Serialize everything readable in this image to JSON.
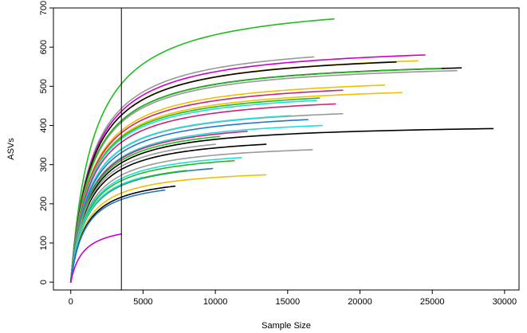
{
  "chart_data": {
    "type": "line",
    "title": "",
    "xlabel": "Sample Size",
    "ylabel": "ASVs",
    "xlim": [
      -1200,
      31000
    ],
    "ylim": [
      -20,
      700
    ],
    "xticks": [
      0,
      5000,
      10000,
      15000,
      20000,
      25000,
      30000
    ],
    "yticks": [
      0,
      100,
      200,
      300,
      400,
      500,
      600,
      700
    ],
    "grid": false,
    "legend": "none",
    "vline": 3500,
    "series": [
      {
        "color": "#22bb22",
        "x_end": 18200,
        "y_end": 672
      },
      {
        "color": "#999999",
        "x_end": 16800,
        "y_end": 575
      },
      {
        "color": "#cc00cc",
        "x_end": 24500,
        "y_end": 580
      },
      {
        "color": "#f0c000",
        "x_end": 24000,
        "y_end": 565
      },
      {
        "color": "#000000",
        "x_end": 22500,
        "y_end": 562
      },
      {
        "color": "#000000",
        "x_end": 27000,
        "y_end": 547
      },
      {
        "color": "#999999",
        "x_end": 26700,
        "y_end": 540
      },
      {
        "color": "#22bb22",
        "x_end": 25600,
        "y_end": 545
      },
      {
        "color": "#f0c000",
        "x_end": 21700,
        "y_end": 503
      },
      {
        "color": "#cc2277",
        "x_end": 18800,
        "y_end": 490
      },
      {
        "color": "#f0c000",
        "x_end": 22900,
        "y_end": 484
      },
      {
        "color": "#22bb22",
        "x_end": 17200,
        "y_end": 470
      },
      {
        "color": "#22dddd",
        "x_end": 17000,
        "y_end": 464
      },
      {
        "color": "#cc2277",
        "x_end": 18300,
        "y_end": 455
      },
      {
        "color": "#999999",
        "x_end": 18800,
        "y_end": 430
      },
      {
        "color": "#22dddd",
        "x_end": 15200,
        "y_end": 425
      },
      {
        "color": "#2277cc",
        "x_end": 16400,
        "y_end": 415
      },
      {
        "color": "#22dddd",
        "x_end": 17400,
        "y_end": 400
      },
      {
        "color": "#000000",
        "x_end": 29200,
        "y_end": 392
      },
      {
        "color": "#cc2277",
        "x_end": 12200,
        "y_end": 385
      },
      {
        "color": "#22bb22",
        "x_end": 10300,
        "y_end": 372
      },
      {
        "color": "#000000",
        "x_end": 13500,
        "y_end": 352
      },
      {
        "color": "#999999",
        "x_end": 10000,
        "y_end": 352
      },
      {
        "color": "#999999",
        "x_end": 16700,
        "y_end": 338
      },
      {
        "color": "#22dddd",
        "x_end": 11800,
        "y_end": 318
      },
      {
        "color": "#22bb22",
        "x_end": 11300,
        "y_end": 310
      },
      {
        "color": "#2277cc",
        "x_end": 9800,
        "y_end": 290
      },
      {
        "color": "#22bb22",
        "x_end": 8000,
        "y_end": 285
      },
      {
        "color": "#f0c000",
        "x_end": 13500,
        "y_end": 274
      },
      {
        "color": "#22dddd",
        "x_end": 5000,
        "y_end": 268
      },
      {
        "color": "#000000",
        "x_end": 7200,
        "y_end": 245
      },
      {
        "color": "#2277cc",
        "x_end": 6500,
        "y_end": 235
      },
      {
        "color": "#cc00cc",
        "x_end": 3500,
        "y_end": 123
      }
    ]
  }
}
